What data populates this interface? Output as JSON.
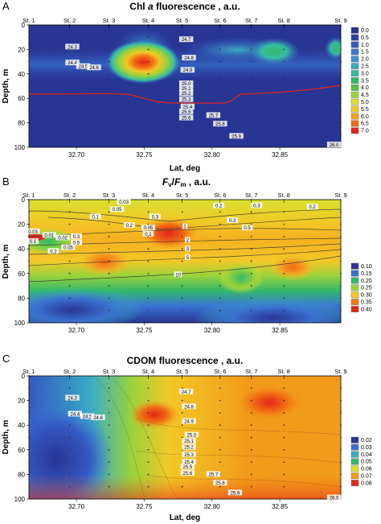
{
  "figure": {
    "panels": [
      {
        "letter": "A",
        "title": "Chl a fluorescence , a.u.",
        "title_italic": "a",
        "xlabel": "Lat, deg",
        "ylabel": "Depth, m",
        "show_xlabel": true,
        "legend_labels": [
          "0.0",
          "0.5",
          "1.0",
          "1.5",
          "2.0",
          "2.5",
          "3.0",
          "3.5",
          "4.0",
          "4.5",
          "5.0",
          "5.5",
          "6.0",
          "6.5",
          "7.0"
        ],
        "legend_colors": [
          "#283593",
          "#2f3fa8",
          "#3559c4",
          "#3a75d4",
          "#3d90d8",
          "#3aacc4",
          "#35bca0",
          "#33b96a",
          "#54c24a",
          "#99d23b",
          "#d8e030",
          "#f2c827",
          "#f7a21c",
          "#f26a13",
          "#e3261a"
        ]
      },
      {
        "letter": "B",
        "title": "Fv/Fm , a.u.",
        "title_html": "Fv/Fm",
        "xlabel": "Lat, deg",
        "ylabel": "Depth, m",
        "show_xlabel": false,
        "legend_labels": [
          "0.10",
          "0.15",
          "0.20",
          "0.25",
          "0.30",
          "0.35",
          "0.40"
        ],
        "legend_colors": [
          "#283593",
          "#3a6fd0",
          "#33b96a",
          "#99d23b",
          "#f2c827",
          "#f27a15",
          "#e3261a"
        ]
      },
      {
        "letter": "C",
        "title": "CDOM fluorescence , a.u.",
        "xlabel": "Lat, deg",
        "ylabel": "Depth, m",
        "show_xlabel": true,
        "legend_labels": [
          "0.02",
          "0.03",
          "0.04",
          "0.05",
          "0.06",
          "0.07",
          "0.08"
        ],
        "legend_colors": [
          "#283593",
          "#3a6fd0",
          "#3aacc4",
          "#33b96a",
          "#d8e030",
          "#f29a1a",
          "#e3261a"
        ]
      }
    ]
  },
  "chart_data": [
    {
      "type": "heatmap",
      "panel": "A",
      "title": "Chl a fluorescence , a.u.",
      "xlabel": "Lat, deg",
      "ylabel": "Depth, m",
      "xlim": [
        32.665,
        32.895
      ],
      "ylim": [
        100,
        0
      ],
      "x_ticks": [
        32.7,
        32.75,
        32.8,
        32.85
      ],
      "y_ticks": [
        0,
        20,
        40,
        60,
        80,
        100
      ],
      "stations": [
        {
          "name": "St. 1",
          "lat": 32.665
        },
        {
          "name": "St. 2",
          "lat": 32.695
        },
        {
          "name": "St. 3",
          "lat": 32.724
        },
        {
          "name": "St. 4",
          "lat": 32.753
        },
        {
          "name": "St. 5",
          "lat": 32.778
        },
        {
          "name": "St. 6",
          "lat": 32.806
        },
        {
          "name": "St. 7",
          "lat": 32.829
        },
        {
          "name": "St. 8",
          "lat": 32.853
        },
        {
          "name": "St. 9",
          "lat": 32.895
        }
      ],
      "colorbar": [
        0.0,
        0.5,
        1.0,
        1.5,
        2.0,
        2.5,
        3.0,
        3.5,
        4.0,
        4.5,
        5.0,
        5.5,
        6.0,
        6.5,
        7.0
      ],
      "features": [
        {
          "lat": 32.755,
          "depth": 30,
          "value": 7.0
        },
        {
          "lat": 32.78,
          "depth": 14,
          "value": 2.0
        },
        {
          "lat": 32.829,
          "depth": 20,
          "value": 3.0
        },
        {
          "lat": 32.893,
          "depth": 18,
          "value": 2.5
        },
        {
          "lat": 32.7,
          "depth": 20,
          "value": 0.5
        }
      ],
      "annotations": [
        {
          "text": "24.3",
          "lat": 32.697,
          "depth": 18
        },
        {
          "text": "24.4",
          "lat": 32.697,
          "depth": 31
        },
        {
          "text": "24.5",
          "lat": 32.705,
          "depth": 34
        },
        {
          "text": "24.6",
          "lat": 32.713,
          "depth": 35
        },
        {
          "text": "24.7",
          "lat": 32.781,
          "depth": 12
        },
        {
          "text": "24.8",
          "lat": 32.783,
          "depth": 27
        },
        {
          "text": "24.9",
          "lat": 32.782,
          "depth": 37
        },
        {
          "text": "25.0",
          "lat": 32.781,
          "depth": 48
        },
        {
          "text": "25.1",
          "lat": 32.781,
          "depth": 52
        },
        {
          "text": "25.2",
          "lat": 32.781,
          "depth": 56
        },
        {
          "text": "25.3",
          "lat": 32.781,
          "depth": 61
        },
        {
          "text": "25.4",
          "lat": 32.782,
          "depth": 67
        },
        {
          "text": "25.5",
          "lat": 32.781,
          "depth": 71
        },
        {
          "text": "25.6",
          "lat": 32.781,
          "depth": 76
        },
        {
          "text": "25.7",
          "lat": 32.801,
          "depth": 74
        },
        {
          "text": "25.8",
          "lat": 32.806,
          "depth": 81
        },
        {
          "text": "25.9",
          "lat": 32.818,
          "depth": 91
        },
        {
          "text": "26.0",
          "lat": 32.89,
          "depth": 98
        }
      ],
      "mixed_layer_line": [
        {
          "lat": 32.665,
          "depth": 37
        },
        {
          "lat": 32.728,
          "depth": 37
        },
        {
          "lat": 32.765,
          "depth": 48
        },
        {
          "lat": 32.8,
          "depth": 48
        },
        {
          "lat": 32.812,
          "depth": 37
        },
        {
          "lat": 32.895,
          "depth": 29
        }
      ]
    },
    {
      "type": "heatmap",
      "panel": "B",
      "title": "Fv/Fm , a.u.",
      "xlabel": "Lat, deg",
      "ylabel": "Depth, m",
      "xlim": [
        32.665,
        32.895
      ],
      "ylim": [
        100,
        0
      ],
      "x_ticks": [
        32.7,
        32.75,
        32.8,
        32.85
      ],
      "y_ticks": [
        0,
        20,
        40,
        60,
        80,
        100
      ],
      "stations": [
        "St. 1",
        "St. 2",
        "St. 3",
        "St. 4",
        "St. 5",
        "St. 6",
        "St. 7",
        "St. 8",
        "St. 9"
      ],
      "colorbar": [
        0.1,
        0.15,
        0.2,
        0.25,
        0.3,
        0.35,
        0.4
      ],
      "features": [
        {
          "lat": 32.68,
          "depth": 30,
          "value": 0.4
        },
        {
          "lat": 32.722,
          "depth": 50,
          "value": 0.35
        },
        {
          "lat": 32.85,
          "depth": 55,
          "value": 0.35
        },
        {
          "lat": 32.69,
          "depth": 85,
          "value": 0.1
        },
        {
          "lat": 32.84,
          "depth": 90,
          "value": 0.1
        }
      ],
      "annotations": [
        {
          "text": "0.03",
          "lat": 32.735,
          "depth": 2
        },
        {
          "text": "0.05",
          "lat": 32.73,
          "depth": 8
        },
        {
          "text": "0.2",
          "lat": 32.805,
          "depth": 5
        },
        {
          "text": "0.1",
          "lat": 32.714,
          "depth": 14
        },
        {
          "text": "0.3",
          "lat": 32.758,
          "depth": 14
        },
        {
          "text": "0.2",
          "lat": 32.739,
          "depth": 21
        },
        {
          "text": "0.05",
          "lat": 32.753,
          "depth": 23
        },
        {
          "text": "0.1",
          "lat": 32.753,
          "depth": 28
        },
        {
          "text": "0.3",
          "lat": 32.833,
          "depth": 5
        },
        {
          "text": "0.2",
          "lat": 32.874,
          "depth": 6
        },
        {
          "text": "0.3",
          "lat": 32.815,
          "depth": 17
        },
        {
          "text": "0.5",
          "lat": 32.826,
          "depth": 23
        },
        {
          "text": "0.03",
          "lat": 32.668,
          "depth": 26
        },
        {
          "text": "0.01",
          "lat": 32.68,
          "depth": 29
        },
        {
          "text": "0.1",
          "lat": 32.668,
          "depth": 34
        },
        {
          "text": "0.02",
          "lat": 32.69,
          "depth": 31
        },
        {
          "text": "0.3",
          "lat": 32.7,
          "depth": 30
        },
        {
          "text": "0.5",
          "lat": 32.7,
          "depth": 35
        },
        {
          "text": "0.05",
          "lat": 32.694,
          "depth": 39
        },
        {
          "text": "0.2",
          "lat": 32.683,
          "depth": 42
        },
        {
          "text": "1",
          "lat": 32.78,
          "depth": 22
        },
        {
          "text": "2",
          "lat": 32.782,
          "depth": 33
        },
        {
          "text": "3",
          "lat": 32.782,
          "depth": 40
        },
        {
          "text": "5",
          "lat": 32.782,
          "depth": 47
        },
        {
          "text": "10",
          "lat": 32.775,
          "depth": 61
        }
      ]
    },
    {
      "type": "heatmap",
      "panel": "C",
      "title": "CDOM fluorescence , a.u.",
      "xlabel": "Lat, deg",
      "ylabel": "Depth, m",
      "xlim": [
        32.665,
        32.895
      ],
      "ylim": [
        100,
        0
      ],
      "x_ticks": [
        32.7,
        32.75,
        32.8,
        32.85
      ],
      "y_ticks": [
        0,
        20,
        40,
        60,
        80,
        100
      ],
      "stations": [
        "St. 1",
        "St. 2",
        "St. 3",
        "St. 4",
        "St. 5",
        "St. 6",
        "St. 7",
        "St. 8",
        "St. 9"
      ],
      "colorbar": [
        0.02,
        0.03,
        0.04,
        0.05,
        0.06,
        0.07,
        0.08
      ],
      "features": [
        {
          "lat": 32.68,
          "depth": 70,
          "value": 0.02
        },
        {
          "lat": 32.758,
          "depth": 32,
          "value": 0.08
        },
        {
          "lat": 32.83,
          "depth": 20,
          "value": 0.08
        }
      ],
      "annotations": [
        {
          "text": "24.3",
          "lat": 32.697,
          "depth": 18
        },
        {
          "text": "24.4",
          "lat": 32.699,
          "depth": 31
        },
        {
          "text": "24.5",
          "lat": 32.708,
          "depth": 33
        },
        {
          "text": "24.6",
          "lat": 32.716,
          "depth": 34
        },
        {
          "text": "24.7",
          "lat": 32.781,
          "depth": 13
        },
        {
          "text": "24.8",
          "lat": 32.783,
          "depth": 25
        },
        {
          "text": "24.9",
          "lat": 32.783,
          "depth": 37
        },
        {
          "text": "25.0",
          "lat": 32.785,
          "depth": 48
        },
        {
          "text": "25.1",
          "lat": 32.783,
          "depth": 53
        },
        {
          "text": "25.2",
          "lat": 32.783,
          "depth": 58
        },
        {
          "text": "25.3",
          "lat": 32.783,
          "depth": 64
        },
        {
          "text": "25.4",
          "lat": 32.783,
          "depth": 70
        },
        {
          "text": "25.5",
          "lat": 32.782,
          "depth": 74
        },
        {
          "text": "25.6",
          "lat": 32.782,
          "depth": 79
        },
        {
          "text": "25.7",
          "lat": 32.801,
          "depth": 80
        },
        {
          "text": "25.8",
          "lat": 32.806,
          "depth": 87
        },
        {
          "text": "25.9",
          "lat": 32.817,
          "depth": 95
        },
        {
          "text": "26.0",
          "lat": 32.89,
          "depth": 99
        }
      ]
    }
  ]
}
